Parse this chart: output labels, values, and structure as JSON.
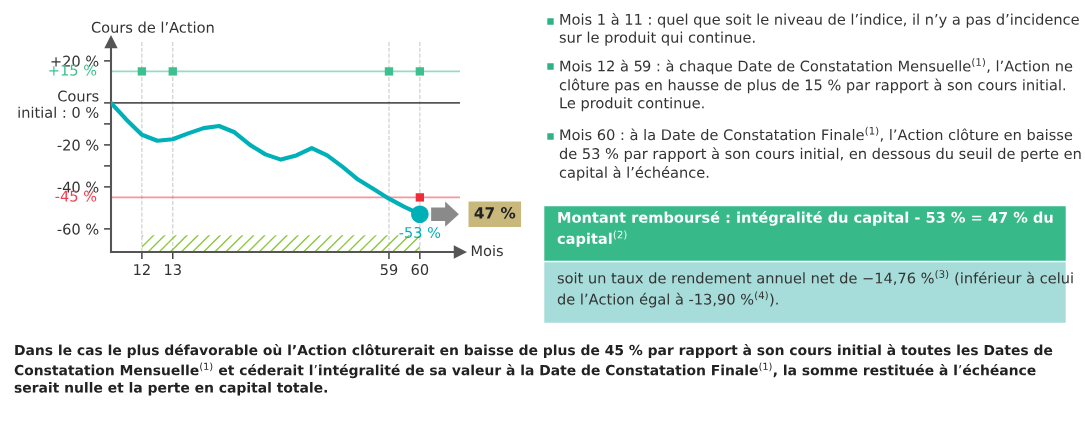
{
  "chart_data": {
    "type": "line",
    "ylabel": "Cours de l’Action",
    "xlabel": "Mois",
    "categories": [
      null,
      null,
      "12",
      null,
      "13",
      null,
      null,
      null,
      null,
      null,
      null,
      null,
      null,
      null,
      null,
      null,
      null,
      null,
      "59",
      null,
      "60",
      null,
      null
    ],
    "ylim": [
      -71,
      29
    ],
    "yticks": [
      {
        "value": 20,
        "label": "+20 %"
      },
      {
        "value": 0,
        "label": "Cours\ninitial : 0 %"
      },
      {
        "value": -10,
        "label": null
      },
      {
        "value": -20,
        "label": "-20 %"
      },
      {
        "value": -30,
        "label": null
      },
      {
        "value": -40,
        "label": "-40 %"
      },
      {
        "value": -60,
        "label": "-60 %"
      }
    ],
    "grid": "x",
    "series": [
      {
        "color": "#00b0b9",
        "values": [
          0,
          -8,
          -15.2,
          -18,
          -17.3,
          -14.5,
          -12,
          -11,
          -14,
          -20,
          -24.5,
          -27,
          -25,
          -21.5,
          -25,
          -30.5,
          -36.5,
          -41,
          -45.6,
          -49.5,
          -53,
          null,
          null
        ]
      },
      {
        "type": "scatter",
        "color": "#3dbf8f",
        "marker": "square",
        "x": [
          "12",
          "13",
          "59",
          "60"
        ],
        "values": [
          15,
          15,
          15,
          15
        ]
      },
      {
        "type": "scatter",
        "color": "#ee2c3c",
        "marker": "square",
        "x": [
          "60"
        ],
        "values": [
          -45
        ]
      },
      {
        "type": "scatter",
        "color": "#00b0b9",
        "marker": "circle",
        "x": [
          "60"
        ],
        "values": [
          -53
        ]
      }
    ],
    "ref_lines": [
      {
        "axis": "y",
        "value": 15,
        "label": "+15 %",
        "color": "#3dbf8f"
      },
      {
        "axis": "y",
        "value": -45,
        "label": "-45 %",
        "color": "#f04050"
      },
      {
        "axis": "y",
        "value": 0,
        "color": "#444444"
      }
    ],
    "bands": [
      {
        "axis": "x",
        "from": "12",
        "to": "60",
        "color": "#8cc63f"
      }
    ],
    "annotations": [
      {
        "text": "-53 %",
        "x": "60",
        "y": -53
      },
      "47 %",
      "Mois 1 à 11 : quel que soit le niveau de l’indice, il n’y a pas d’incidence sur le produit qui continue.",
      "Mois 12 à 59 : à chaque Date de Constatation Mensuelle$^{(1)}$, l’Action ne clôture pas en hausse de plus de 15 % par rapport à son cours initial. Le produit continue.",
      "Mois 60 : à la Date de Constatation Finale$^{(1)}$, l’Action clôture en baisse de 53 % par rapport à son cours initial, en dessous du seuil de perte en capital à l’échéance.",
      "Montant remboursé : intégralité du capital - 53 % = 47 % du capital$^{(2)}$",
      "soit un taux de rendement annuel net de −14,76 %$^{(3)}$ (inférieur à celui de l’Action égal à -13,90 %$^{(4)}$).",
      "Dans le cas le plus défavorable où l’Action clôturerait en baisse de plus de 45 % par rapport à son cours initial à toutes les Dates de Constatation Mensuelle$^{(1)}$ et céderait l’intégralité de sa valeur à la Date de Constatation Finale$^{(1)}$, la somme restituée à l’échéance serait nulle et la perte en capital totale."
    ]
  }
}
